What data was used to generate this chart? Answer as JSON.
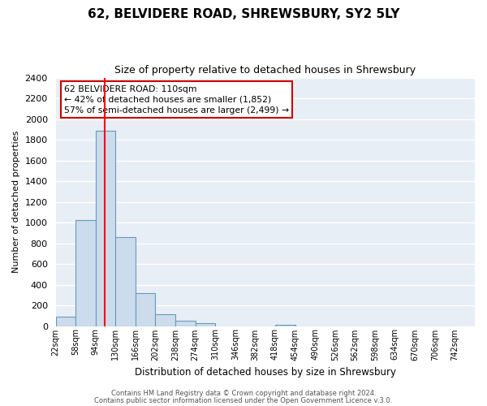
{
  "title": "62, BELVIDERE ROAD, SHREWSBURY, SY2 5LY",
  "subtitle": "Size of property relative to detached houses in Shrewsbury",
  "xlabel": "Distribution of detached houses by size in Shrewsbury",
  "ylabel": "Number of detached properties",
  "bin_labels": [
    "22sqm",
    "58sqm",
    "94sqm",
    "130sqm",
    "166sqm",
    "202sqm",
    "238sqm",
    "274sqm",
    "310sqm",
    "346sqm",
    "382sqm",
    "418sqm",
    "454sqm",
    "490sqm",
    "526sqm",
    "562sqm",
    "598sqm",
    "634sqm",
    "670sqm",
    "706sqm",
    "742sqm"
  ],
  "bin_edges": [
    22,
    58,
    94,
    130,
    166,
    202,
    238,
    274,
    310,
    346,
    382,
    418,
    454,
    490,
    526,
    562,
    598,
    634,
    670,
    706,
    742
  ],
  "bin_width": 36,
  "bar_heights": [
    90,
    1020,
    1890,
    860,
    320,
    115,
    50,
    30,
    0,
    0,
    0,
    15,
    0,
    0,
    0,
    0,
    0,
    0,
    0,
    0
  ],
  "bar_color": "#ccdcec",
  "bar_edge_color": "#6699bb",
  "red_line_x": 110,
  "ylim": [
    0,
    2400
  ],
  "yticks": [
    0,
    200,
    400,
    600,
    800,
    1000,
    1200,
    1400,
    1600,
    1800,
    2000,
    2200,
    2400
  ],
  "annotation_title": "62 BELVIDERE ROAD: 110sqm",
  "annotation_line1": "← 42% of detached houses are smaller (1,852)",
  "annotation_line2": "57% of semi-detached houses are larger (2,499) →",
  "footer1": "Contains HM Land Registry data © Crown copyright and database right 2024.",
  "footer2": "Contains public sector information licensed under the Open Government Licence v.3.0.",
  "background_color": "#ffffff",
  "plot_background_color": "#e8eef5",
  "grid_color": "#ffffff",
  "annotation_box_edge_color": "#cc0000"
}
